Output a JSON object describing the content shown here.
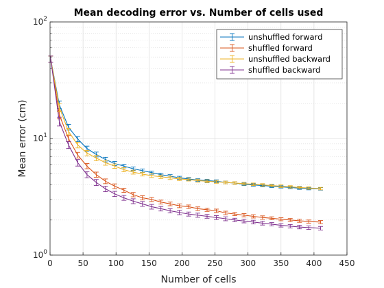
{
  "chart_data": {
    "type": "line",
    "title": "Mean decoding error vs. Number of cells used",
    "xlabel": "Number of cells",
    "ylabel": "Mean error (cm)",
    "xlim": [
      0,
      450
    ],
    "ylim": [
      1,
      100
    ],
    "yscale": "log",
    "grid": true,
    "minor_grid": true,
    "legend_position": "top-right",
    "x_ticks": [
      "0",
      "50",
      "100",
      "150",
      "200",
      "250",
      "300",
      "350",
      "400",
      "450"
    ],
    "y_ticks": [
      {
        "base": "10",
        "exp": "0"
      },
      {
        "base": "10",
        "exp": "1"
      },
      {
        "base": "10",
        "exp": "2"
      }
    ],
    "x": [
      1,
      14,
      28,
      42,
      56,
      70,
      84,
      98,
      112,
      126,
      140,
      154,
      168,
      182,
      196,
      210,
      224,
      238,
      252,
      266,
      280,
      294,
      308,
      322,
      336,
      350,
      364,
      378,
      392,
      410
    ],
    "series": [
      {
        "name": "unshuffled forward",
        "color": "#0072BD",
        "values": [
          48,
          19.5,
          12.5,
          9.9,
          8.2,
          7.3,
          6.6,
          6.1,
          5.8,
          5.5,
          5.3,
          5.1,
          4.9,
          4.75,
          4.6,
          4.5,
          4.4,
          4.35,
          4.3,
          4.2,
          4.15,
          4.05,
          4.0,
          3.95,
          3.9,
          3.85,
          3.8,
          3.75,
          3.72,
          3.7
        ],
        "errors": [
          3,
          1.5,
          0.7,
          0.5,
          0.4,
          0.35,
          0.3,
          0.25,
          0.2,
          0.2,
          0.18,
          0.16,
          0.15,
          0.15,
          0.14,
          0.13,
          0.12,
          0.12,
          0.12,
          0.11,
          0.11,
          0.1,
          0.1,
          0.1,
          0.1,
          0.09,
          0.09,
          0.09,
          0.09,
          0.09
        ]
      },
      {
        "name": "shuffled forward",
        "color": "#D95319",
        "values": [
          48,
          16,
          10,
          7.2,
          5.8,
          4.9,
          4.3,
          3.9,
          3.6,
          3.3,
          3.1,
          3.0,
          2.85,
          2.75,
          2.65,
          2.6,
          2.5,
          2.45,
          2.4,
          2.3,
          2.25,
          2.2,
          2.15,
          2.1,
          2.07,
          2.03,
          2.0,
          1.97,
          1.94,
          1.92
        ],
        "errors": [
          3,
          1.2,
          0.6,
          0.4,
          0.3,
          0.25,
          0.2,
          0.18,
          0.15,
          0.14,
          0.13,
          0.12,
          0.11,
          0.1,
          0.1,
          0.09,
          0.09,
          0.08,
          0.08,
          0.08,
          0.07,
          0.07,
          0.07,
          0.07,
          0.06,
          0.06,
          0.06,
          0.06,
          0.06,
          0.06
        ]
      },
      {
        "name": "unshuffled backward",
        "color": "#EDB120",
        "values": [
          48,
          18.5,
          11.5,
          8.8,
          7.5,
          6.8,
          6.2,
          5.8,
          5.4,
          5.15,
          4.95,
          4.8,
          4.7,
          4.6,
          4.5,
          4.45,
          4.35,
          4.3,
          4.25,
          4.2,
          4.15,
          4.1,
          4.05,
          4.0,
          3.95,
          3.9,
          3.85,
          3.8,
          3.76,
          3.72
        ],
        "errors": [
          3,
          1.4,
          0.7,
          0.5,
          0.4,
          0.35,
          0.3,
          0.25,
          0.22,
          0.2,
          0.18,
          0.17,
          0.16,
          0.15,
          0.14,
          0.13,
          0.13,
          0.12,
          0.12,
          0.11,
          0.11,
          0.11,
          0.1,
          0.1,
          0.1,
          0.1,
          0.09,
          0.09,
          0.09,
          0.09
        ]
      },
      {
        "name": "shuffled backward",
        "color": "#7E2F8E",
        "values": [
          48,
          14,
          8.8,
          6.2,
          4.9,
          4.2,
          3.7,
          3.35,
          3.1,
          2.9,
          2.75,
          2.6,
          2.5,
          2.4,
          2.32,
          2.25,
          2.2,
          2.15,
          2.1,
          2.05,
          2.0,
          1.96,
          1.92,
          1.88,
          1.84,
          1.8,
          1.77,
          1.74,
          1.72,
          1.7
        ],
        "errors": [
          3,
          1.2,
          0.6,
          0.4,
          0.3,
          0.25,
          0.2,
          0.17,
          0.15,
          0.14,
          0.13,
          0.12,
          0.11,
          0.1,
          0.1,
          0.09,
          0.09,
          0.08,
          0.08,
          0.08,
          0.07,
          0.07,
          0.07,
          0.07,
          0.06,
          0.06,
          0.06,
          0.06,
          0.06,
          0.06
        ]
      }
    ]
  }
}
